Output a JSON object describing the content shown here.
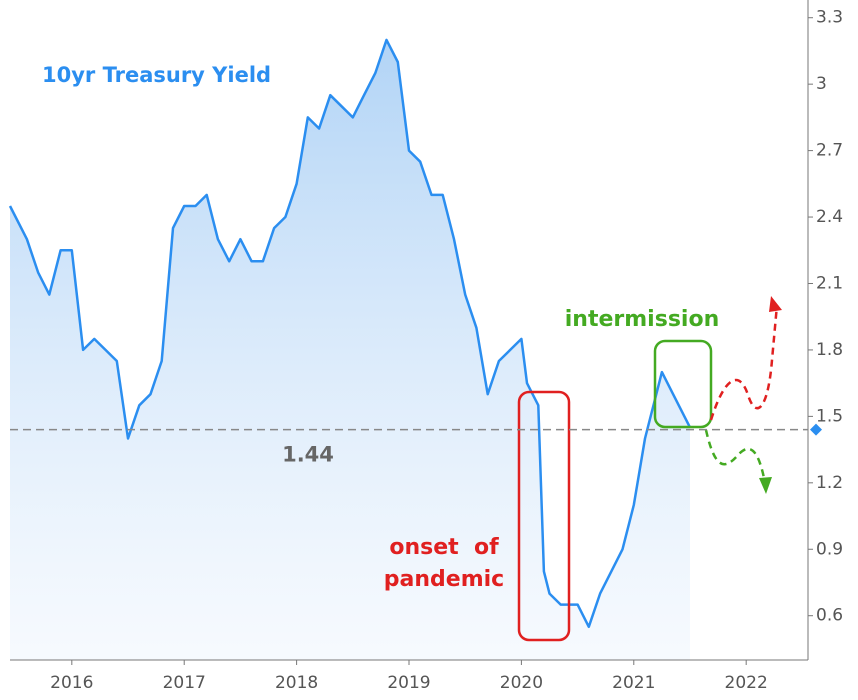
{
  "chart_data": {
    "type": "line",
    "title": "10yr Treasury Yield",
    "x": [
      2015.45,
      2015.6,
      2015.7,
      2015.8,
      2015.9,
      2016.0,
      2016.1,
      2016.2,
      2016.3,
      2016.4,
      2016.5,
      2016.6,
      2016.7,
      2016.8,
      2016.9,
      2017.0,
      2017.1,
      2017.2,
      2017.3,
      2017.4,
      2017.5,
      2017.6,
      2017.7,
      2017.8,
      2017.9,
      2018.0,
      2018.1,
      2018.2,
      2018.3,
      2018.4,
      2018.5,
      2018.6,
      2018.7,
      2018.8,
      2018.9,
      2019.0,
      2019.1,
      2019.2,
      2019.3,
      2019.4,
      2019.5,
      2019.6,
      2019.7,
      2019.8,
      2019.9,
      2020.0,
      2020.05,
      2020.15,
      2020.2,
      2020.25,
      2020.35,
      2020.5,
      2020.6,
      2020.7,
      2020.8,
      2020.9,
      2021.0,
      2021.1,
      2021.2,
      2021.25,
      2021.35,
      2021.45,
      2021.5
    ],
    "series": [
      {
        "name": "10yr Treasury Yield",
        "color": "#2b8ef0",
        "values": [
          2.45,
          2.3,
          2.15,
          2.05,
          2.25,
          2.25,
          1.8,
          1.85,
          1.8,
          1.75,
          1.4,
          1.55,
          1.6,
          1.75,
          2.35,
          2.45,
          2.45,
          2.5,
          2.3,
          2.2,
          2.3,
          2.2,
          2.2,
          2.35,
          2.4,
          2.55,
          2.85,
          2.8,
          2.95,
          2.9,
          2.85,
          2.95,
          3.05,
          3.2,
          3.1,
          2.7,
          2.65,
          2.5,
          2.5,
          2.3,
          2.05,
          1.9,
          1.6,
          1.75,
          1.8,
          1.85,
          1.65,
          1.55,
          0.8,
          0.7,
          0.65,
          0.65,
          0.55,
          0.7,
          0.8,
          0.9,
          1.1,
          1.4,
          1.6,
          1.7,
          1.6,
          1.5,
          1.45
        ]
      }
    ],
    "reference": 1.44,
    "annotations": [
      "intermission",
      "onset  of",
      "pandemic"
    ],
    "xlim": [
      2015.45,
      2022.55
    ],
    "xticks": [
      2016,
      2017,
      2018,
      2019,
      2020,
      2021,
      2022
    ],
    "ylim": [
      0.4,
      3.38
    ],
    "yticks": [
      0.6,
      0.9,
      1.2,
      1.5,
      1.8,
      2.1,
      2.4,
      2.7,
      3,
      3.3
    ]
  }
}
